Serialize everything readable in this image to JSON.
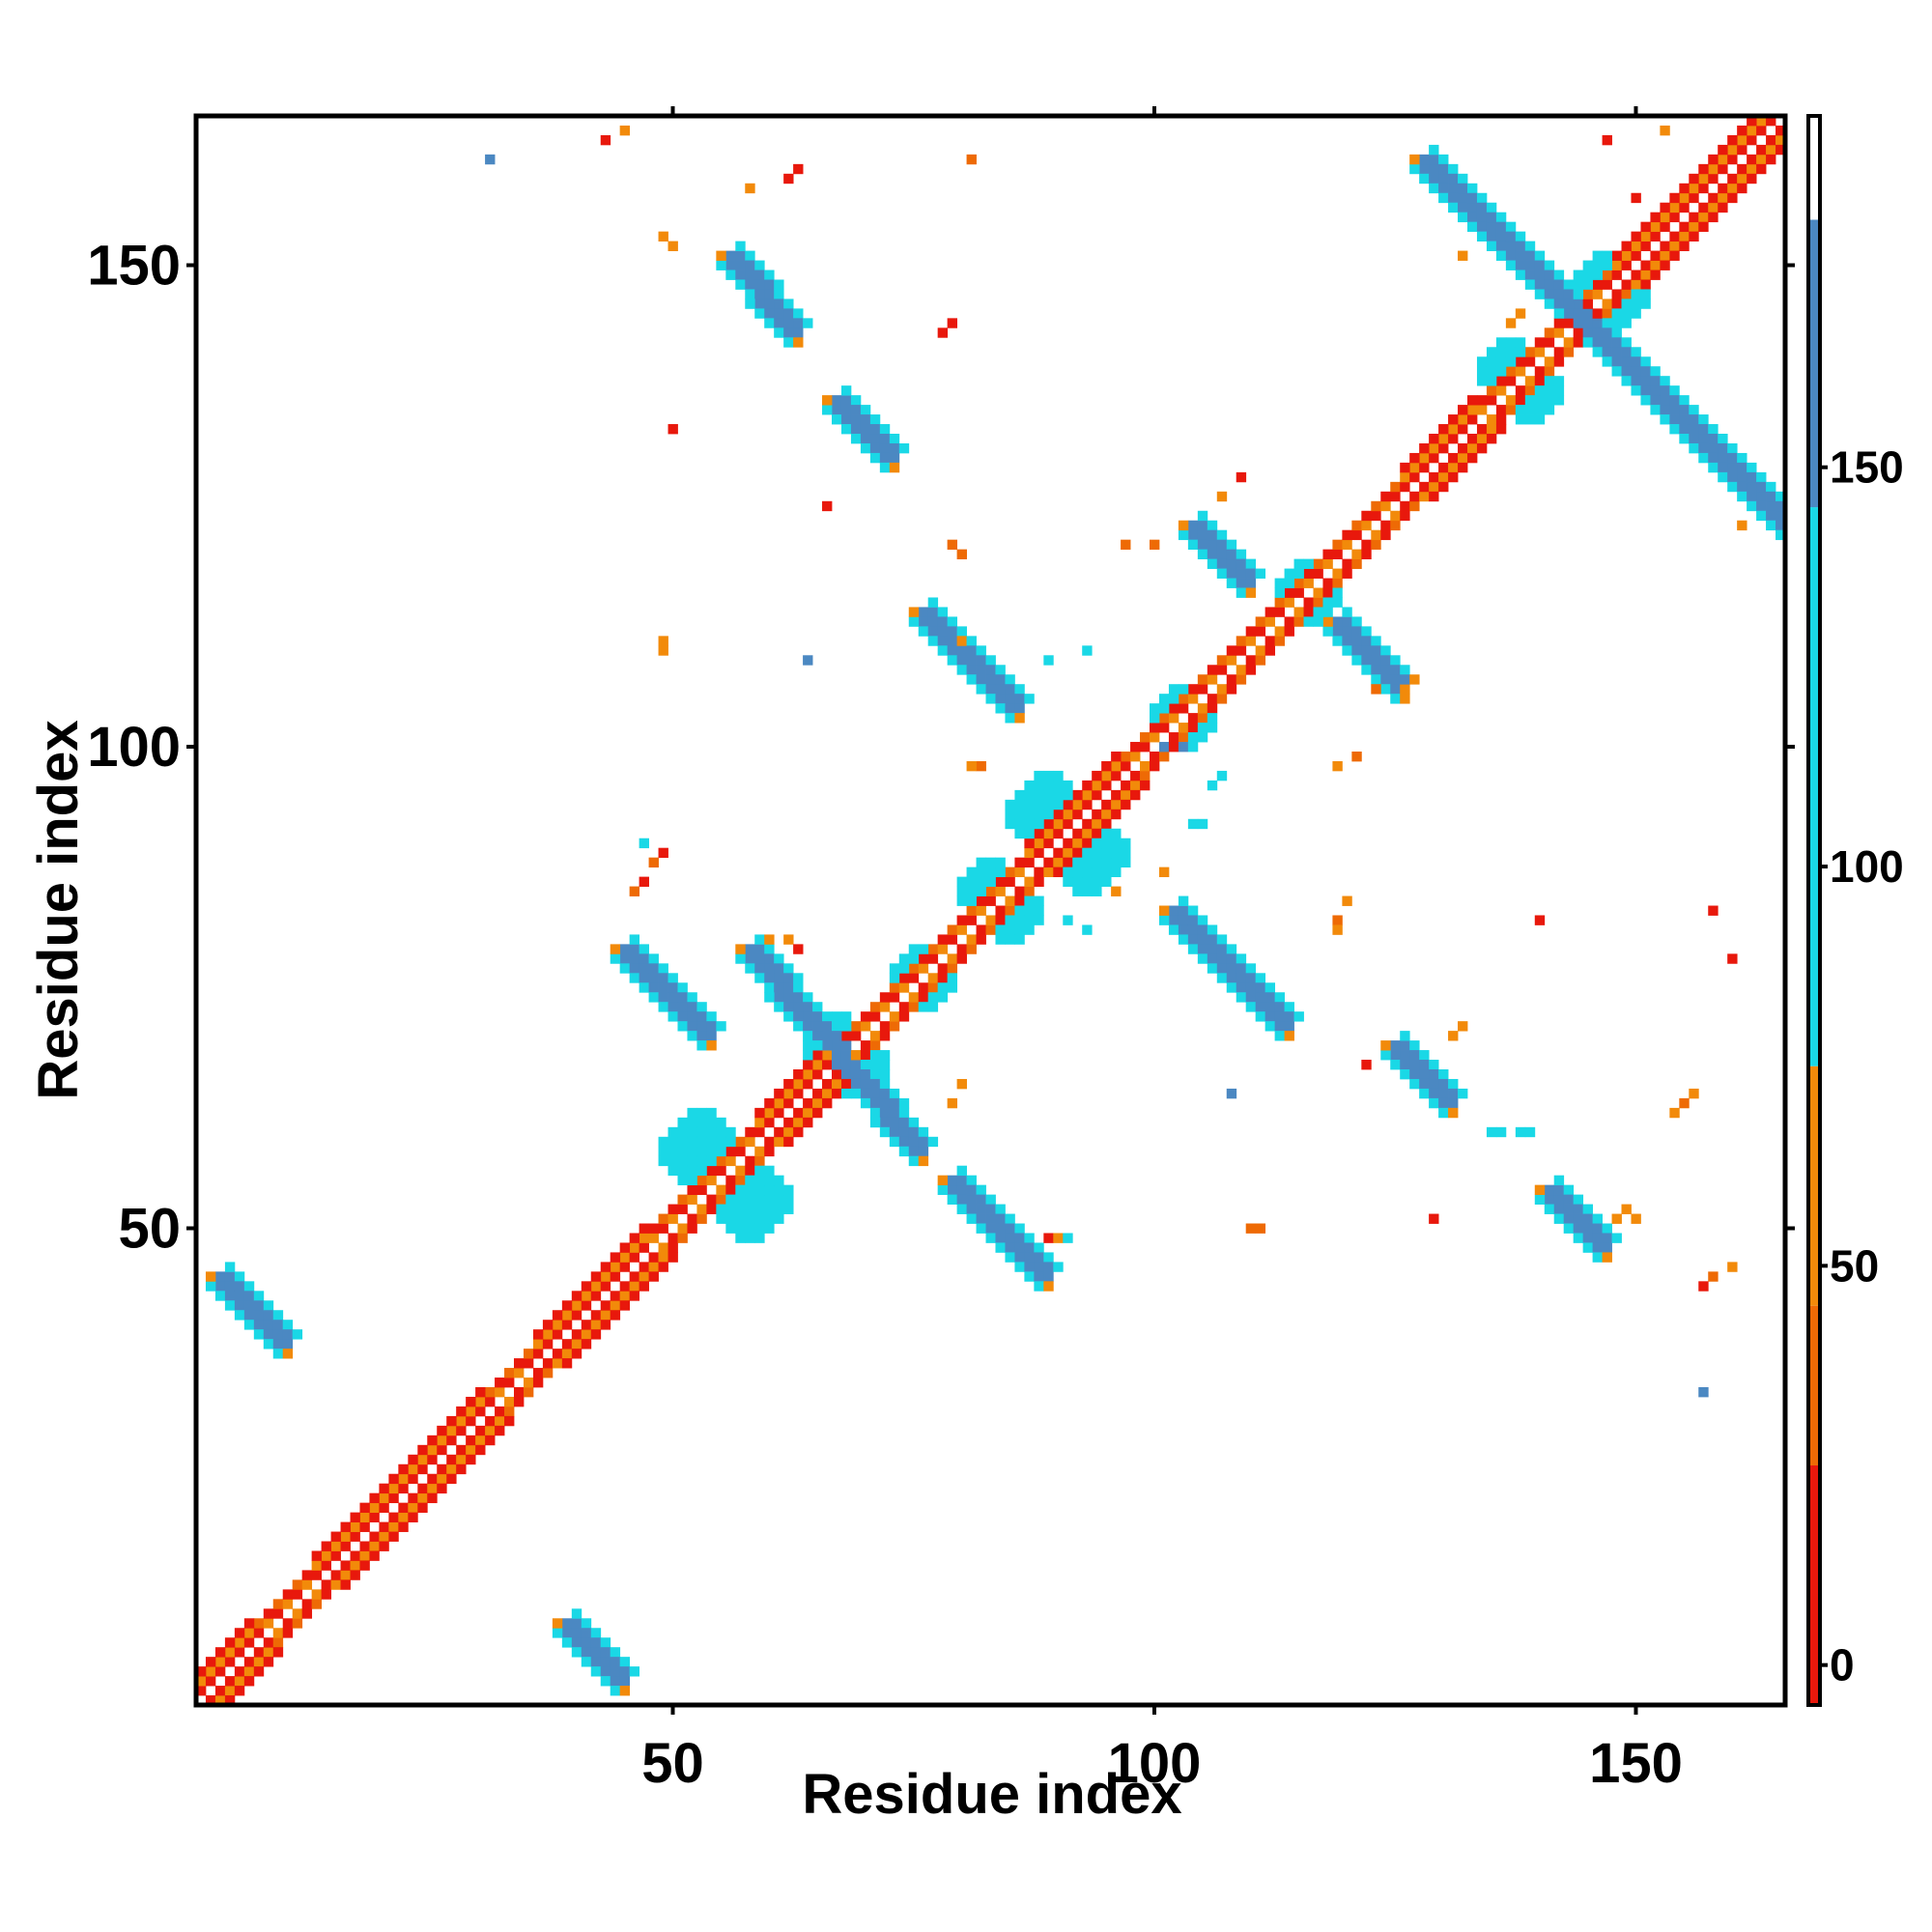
{
  "chart_data": {
    "type": "heatmap",
    "title": "",
    "xlabel": "Residue index",
    "ylabel": "Residue index",
    "xlim": [
      1,
      165
    ],
    "ylim": [
      1,
      165
    ],
    "x_ticks": [
      50,
      100,
      150
    ],
    "y_ticks": [
      50,
      100,
      150
    ],
    "n_residues": 165,
    "grid": false,
    "legend": "colorbar-right",
    "colorbar": {
      "ticks": [
        0,
        50,
        100,
        150
      ],
      "range": [
        -5,
        194
      ],
      "bins": [
        {
          "from": -5,
          "to": 25,
          "color": "#e8180c"
        },
        {
          "from": 25,
          "to": 45,
          "color": "#ee6a05"
        },
        {
          "from": 45,
          "to": 75,
          "color": "#f28a0a"
        },
        {
          "from": 75,
          "to": 145,
          "color": "#1ad8e6"
        },
        {
          "from": 145,
          "to": 181,
          "color": "#4b88c2"
        },
        {
          "from": 181,
          "to": 194,
          "color": "#ffffff"
        }
      ]
    },
    "colors": {
      "diag": "#ffffff",
      "red": "#e8180c",
      "darkorange": "#ee6a05",
      "orange": "#f28a0a",
      "cyan": "#1ad8e6",
      "blue": "#4b88c2"
    },
    "features": [
      {
        "kind": "diag_band",
        "from": 1,
        "to": 165
      },
      {
        "kind": "helix",
        "from": 1,
        "to": 6
      },
      {
        "kind": "helix",
        "from": 13,
        "to": 30
      },
      {
        "kind": "helix",
        "from": 36,
        "to": 47
      },
      {
        "kind": "helix",
        "from": 59,
        "to": 66
      },
      {
        "kind": "helix",
        "from": 87,
        "to": 96
      },
      {
        "kind": "helix",
        "from": 126,
        "to": 133
      },
      {
        "kind": "helix",
        "from": 148,
        "to": 165
      },
      {
        "kind": "cyan_patch",
        "x": 53,
        "y": 58,
        "r": 4
      },
      {
        "kind": "cyan_patch",
        "x": 67,
        "y": 69,
        "r": 3
      },
      {
        "kind": "cyan_patch",
        "x": 76,
        "y": 76,
        "r": 3
      },
      {
        "kind": "cyan_patch",
        "x": 85,
        "y": 83,
        "r": 3
      },
      {
        "kind": "cyan_patch",
        "x": 89,
        "y": 93,
        "r": 4
      },
      {
        "kind": "cyan_patch",
        "x": 103,
        "y": 103,
        "r": 3
      },
      {
        "kind": "cyan_patch",
        "x": 116,
        "y": 116,
        "r": 3
      },
      {
        "kind": "cyan_patch",
        "x": 147,
        "y": 148,
        "r": 3
      },
      {
        "kind": "cyan_patch",
        "x": 137,
        "y": 139,
        "r": 3
      },
      {
        "kind": "anti",
        "x1": 58,
        "y1": 78,
        "x2": 75,
        "y2": 58
      },
      {
        "kind": "anti",
        "x1": 128,
        "y1": 160,
        "x2": 167,
        "y2": 121
      },
      {
        "kind": "anti",
        "x1": 79,
        "y1": 54,
        "x2": 88,
        "y2": 45
      },
      {
        "kind": "anti",
        "x1": 45,
        "y1": 78,
        "x2": 53,
        "y2": 70
      },
      {
        "kind": "anti",
        "x1": 102,
        "y1": 82,
        "x2": 113,
        "y2": 71
      },
      {
        "kind": "anti",
        "x1": 76,
        "y1": 113,
        "x2": 85,
        "y2": 104
      },
      {
        "kind": "anti",
        "x1": 56,
        "y1": 150,
        "x2": 62,
        "y2": 143
      },
      {
        "kind": "anti",
        "x1": 67,
        "y1": 135,
        "x2": 72,
        "y2": 130
      },
      {
        "kind": "anti",
        "x1": 104,
        "y1": 122,
        "x2": 109,
        "y2": 117
      },
      {
        "kind": "anti",
        "x1": 119,
        "y1": 112,
        "x2": 125,
        "y2": 106
      },
      {
        "kind": "anti",
        "x1": 125,
        "y1": 68,
        "x2": 130,
        "y2": 63
      },
      {
        "kind": "anti",
        "x1": 141,
        "y1": 53,
        "x2": 146,
        "y2": 48
      },
      {
        "kind": "anti",
        "x1": 3,
        "y1": 44,
        "x2": 9,
        "y2": 38
      },
      {
        "kind": "anti",
        "x1": 39,
        "y1": 8,
        "x2": 44,
        "y2": 3
      },
      {
        "kind": "dot",
        "x": 62,
        "y": 159,
        "c": "red"
      },
      {
        "kind": "dot",
        "x": 63,
        "y": 160,
        "c": "red"
      },
      {
        "kind": "dot",
        "x": 58,
        "y": 158,
        "c": "orange"
      },
      {
        "kind": "dot",
        "x": 81,
        "y": 161,
        "c": "darkorange"
      },
      {
        "kind": "dot",
        "x": 43,
        "y": 163,
        "c": "red"
      },
      {
        "kind": "dot",
        "x": 45,
        "y": 164,
        "c": "orange"
      },
      {
        "kind": "dot",
        "x": 31,
        "y": 161,
        "c": "blue"
      },
      {
        "kind": "dot",
        "x": 49,
        "y": 153,
        "c": "orange"
      },
      {
        "kind": "dot",
        "x": 50,
        "y": 152,
        "c": "orange"
      },
      {
        "kind": "dot",
        "x": 78,
        "y": 143,
        "c": "red"
      },
      {
        "kind": "dot",
        "x": 79,
        "y": 144,
        "c": "red"
      },
      {
        "kind": "dot",
        "x": 50,
        "y": 133,
        "c": "red"
      },
      {
        "kind": "dot",
        "x": 66,
        "y": 125,
        "c": "red"
      },
      {
        "kind": "dot",
        "x": 79,
        "y": 121,
        "c": "darkorange"
      },
      {
        "kind": "dot",
        "x": 80,
        "y": 120,
        "c": "darkorange"
      },
      {
        "kind": "dot",
        "x": 97,
        "y": 121,
        "c": "darkorange"
      },
      {
        "kind": "dot",
        "x": 100,
        "y": 121,
        "c": "darkorange"
      },
      {
        "kind": "dot",
        "x": 49,
        "y": 110,
        "c": "orange"
      },
      {
        "kind": "dot",
        "x": 49,
        "y": 111,
        "c": "orange"
      },
      {
        "kind": "dot",
        "x": 64,
        "y": 109,
        "c": "blue"
      },
      {
        "kind": "dot",
        "x": 89,
        "y": 109,
        "c": "cyan"
      },
      {
        "kind": "dot",
        "x": 93,
        "y": 110,
        "c": "cyan"
      },
      {
        "kind": "dot",
        "x": 123,
        "y": 106,
        "c": "darkorange"
      },
      {
        "kind": "dot",
        "x": 121,
        "y": 99,
        "c": "darkorange"
      },
      {
        "kind": "dot",
        "x": 119,
        "y": 98,
        "c": "orange"
      },
      {
        "kind": "dot",
        "x": 107,
        "y": 97,
        "c": "cyan"
      },
      {
        "kind": "dot",
        "x": 106,
        "y": 96,
        "c": "cyan"
      },
      {
        "kind": "dot",
        "x": 101,
        "y": 100,
        "c": "blue"
      },
      {
        "kind": "dot",
        "x": 103,
        "y": 100,
        "c": "blue"
      },
      {
        "kind": "dot",
        "x": 104,
        "y": 92,
        "c": "cyan"
      },
      {
        "kind": "dot",
        "x": 105,
        "y": 92,
        "c": "cyan"
      },
      {
        "kind": "dot",
        "x": 120,
        "y": 84,
        "c": "orange"
      },
      {
        "kind": "dot",
        "x": 119,
        "y": 82,
        "c": "darkorange"
      },
      {
        "kind": "dot",
        "x": 140,
        "y": 82,
        "c": "red"
      },
      {
        "kind": "dot",
        "x": 158,
        "y": 83,
        "c": "red"
      },
      {
        "kind": "dot",
        "x": 119,
        "y": 81,
        "c": "orange"
      },
      {
        "kind": "dot",
        "x": 131,
        "y": 70,
        "c": "orange"
      },
      {
        "kind": "dot",
        "x": 132,
        "y": 71,
        "c": "orange"
      },
      {
        "kind": "dot",
        "x": 122,
        "y": 67,
        "c": "red"
      },
      {
        "kind": "dot",
        "x": 108,
        "y": 64,
        "c": "blue"
      },
      {
        "kind": "dot",
        "x": 156,
        "y": 64,
        "c": "orange"
      },
      {
        "kind": "dot",
        "x": 155,
        "y": 63,
        "c": "darkorange"
      },
      {
        "kind": "dot",
        "x": 154,
        "y": 62,
        "c": "orange"
      },
      {
        "kind": "dot",
        "x": 129,
        "y": 51,
        "c": "red"
      },
      {
        "kind": "dot",
        "x": 110,
        "y": 50,
        "c": "darkorange"
      },
      {
        "kind": "dot",
        "x": 111,
        "y": 50,
        "c": "darkorange"
      },
      {
        "kind": "dot",
        "x": 148,
        "y": 51,
        "c": "orange"
      },
      {
        "kind": "dot",
        "x": 149,
        "y": 52,
        "c": "orange"
      },
      {
        "kind": "dot",
        "x": 150,
        "y": 51,
        "c": "orange"
      },
      {
        "kind": "dot",
        "x": 157,
        "y": 44,
        "c": "red"
      },
      {
        "kind": "dot",
        "x": 158,
        "y": 45,
        "c": "darkorange"
      },
      {
        "kind": "dot",
        "x": 160,
        "y": 46,
        "c": "orange"
      },
      {
        "kind": "dot",
        "x": 157,
        "y": 33,
        "c": "blue"
      },
      {
        "kind": "dot",
        "x": 135,
        "y": 60,
        "c": "cyan"
      },
      {
        "kind": "dot",
        "x": 136,
        "y": 60,
        "c": "cyan"
      },
      {
        "kind": "dot",
        "x": 138,
        "y": 60,
        "c": "cyan"
      },
      {
        "kind": "dot",
        "x": 139,
        "y": 60,
        "c": "cyan"
      },
      {
        "kind": "dot",
        "x": 80,
        "y": 65,
        "c": "orange"
      },
      {
        "kind": "dot",
        "x": 79,
        "y": 63,
        "c": "orange"
      },
      {
        "kind": "dot",
        "x": 89,
        "y": 49,
        "c": "red"
      },
      {
        "kind": "dot",
        "x": 90,
        "y": 49,
        "c": "orange"
      },
      {
        "kind": "dot",
        "x": 91,
        "y": 49,
        "c": "cyan"
      },
      {
        "kind": "dot",
        "x": 62,
        "y": 80,
        "c": "orange"
      },
      {
        "kind": "dot",
        "x": 60,
        "y": 80,
        "c": "orange"
      },
      {
        "kind": "dot",
        "x": 63,
        "y": 79,
        "c": "red"
      },
      {
        "kind": "dot",
        "x": 49,
        "y": 89,
        "c": "red"
      },
      {
        "kind": "dot",
        "x": 48,
        "y": 88,
        "c": "darkorange"
      },
      {
        "kind": "dot",
        "x": 47,
        "y": 86,
        "c": "red"
      },
      {
        "kind": "dot",
        "x": 46,
        "y": 85,
        "c": "darkorange"
      },
      {
        "kind": "dot",
        "x": 47,
        "y": 90,
        "c": "cyan"
      },
      {
        "kind": "dot",
        "x": 96,
        "y": 85,
        "c": "orange"
      },
      {
        "kind": "dot",
        "x": 101,
        "y": 87,
        "c": "orange"
      },
      {
        "kind": "dot",
        "x": 91,
        "y": 82,
        "c": "cyan"
      },
      {
        "kind": "dot",
        "x": 93,
        "y": 81,
        "c": "cyan"
      },
      {
        "kind": "dot",
        "x": 160,
        "y": 78,
        "c": "red"
      },
      {
        "kind": "dot",
        "x": 150,
        "y": 157,
        "c": "red"
      },
      {
        "kind": "dot",
        "x": 153,
        "y": 164,
        "c": "orange"
      },
      {
        "kind": "dot",
        "x": 147,
        "y": 163,
        "c": "red"
      },
      {
        "kind": "dot",
        "x": 161,
        "y": 123,
        "c": "orange"
      },
      {
        "kind": "dot",
        "x": 137,
        "y": 144,
        "c": "orange"
      },
      {
        "kind": "dot",
        "x": 132,
        "y": 151,
        "c": "orange"
      },
      {
        "kind": "dot",
        "x": 138,
        "y": 145,
        "c": "orange"
      },
      {
        "kind": "dot",
        "x": 126,
        "y": 106,
        "c": "orange"
      },
      {
        "kind": "dot",
        "x": 127,
        "y": 107,
        "c": "orange"
      },
      {
        "kind": "dot",
        "x": 109,
        "y": 128,
        "c": "red"
      },
      {
        "kind": "dot",
        "x": 107,
        "y": 126,
        "c": "orange"
      },
      {
        "kind": "dot",
        "x": 80,
        "y": 111,
        "c": "orange"
      },
      {
        "kind": "dot",
        "x": 82,
        "y": 98,
        "c": "darkorange"
      },
      {
        "kind": "dot",
        "x": 81,
        "y": 98,
        "c": "orange"
      }
    ]
  }
}
